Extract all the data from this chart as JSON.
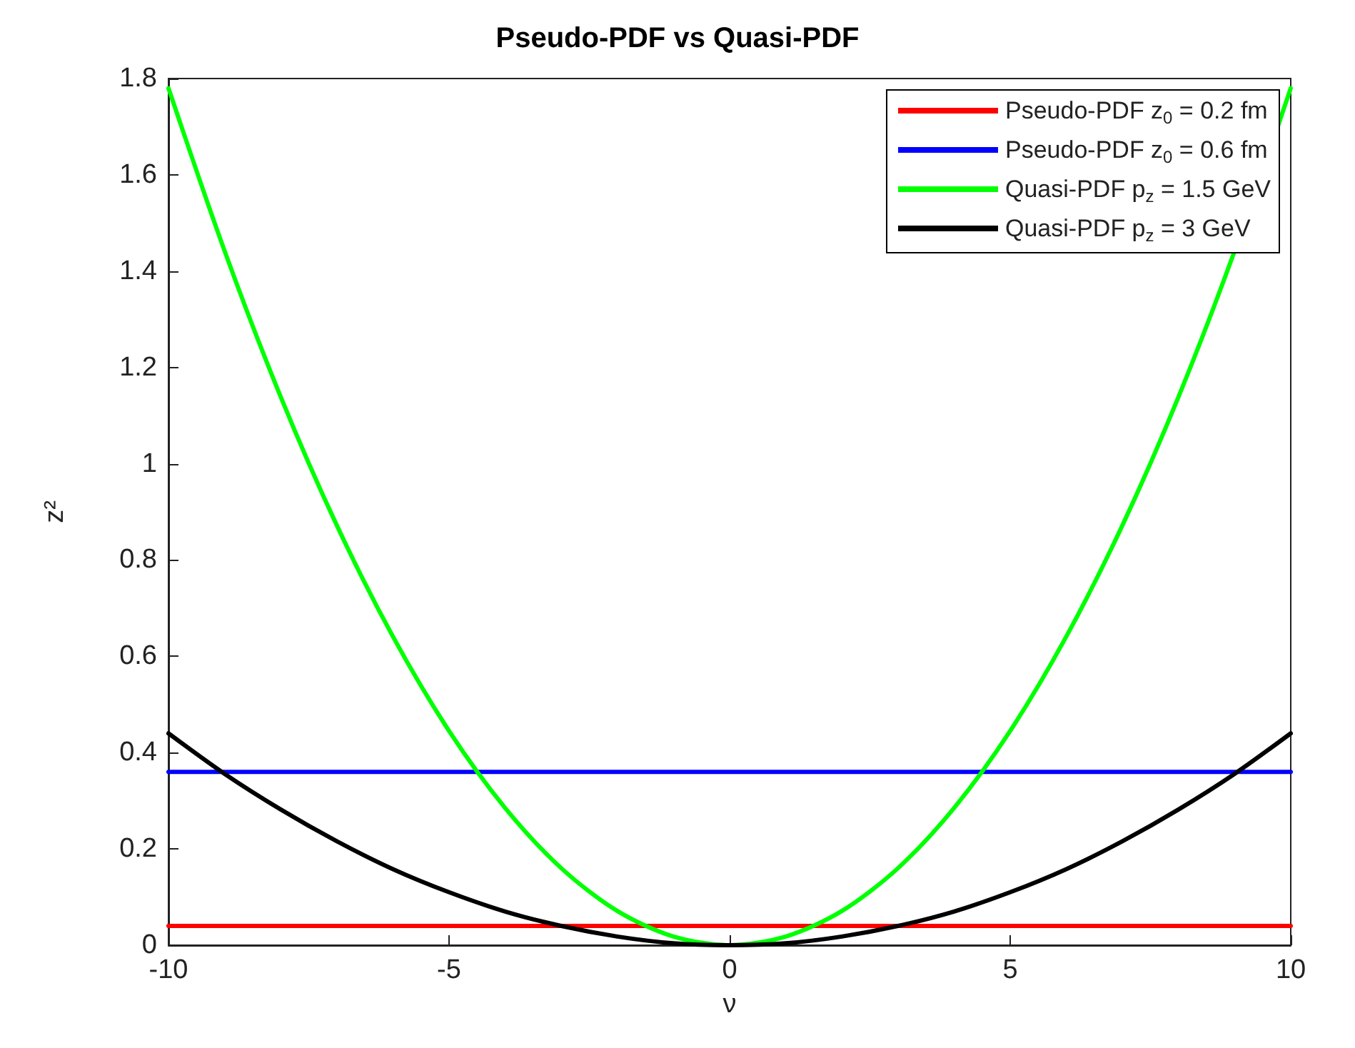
{
  "chart_data": {
    "type": "line",
    "title": "Pseudo-PDF vs Quasi-PDF",
    "xlabel": "ν",
    "ylabel": "z²",
    "x": [
      -10,
      -9,
      -8,
      -7,
      -6,
      -5,
      -4,
      -3,
      -2,
      -1,
      0,
      1,
      2,
      3,
      4,
      5,
      6,
      7,
      8,
      9,
      10
    ],
    "series": [
      {
        "name": "Pseudo-PDF z$_{0}$ = 0.2 fm",
        "color": "#ff0000",
        "values": [
          0.04,
          0.04,
          0.04,
          0.04,
          0.04,
          0.04,
          0.04,
          0.04,
          0.04,
          0.04,
          0.04,
          0.04,
          0.04,
          0.04,
          0.04,
          0.04,
          0.04,
          0.04,
          0.04,
          0.04,
          0.04
        ]
      },
      {
        "name": "Pseudo-PDF z$_{0}$ = 0.6 fm",
        "color": "#0000ff",
        "values": [
          0.36,
          0.36,
          0.36,
          0.36,
          0.36,
          0.36,
          0.36,
          0.36,
          0.36,
          0.36,
          0.36,
          0.36,
          0.36,
          0.36,
          0.36,
          0.36,
          0.36,
          0.36,
          0.36,
          0.36,
          0.36
        ]
      },
      {
        "name": "Quasi-PDF p$_{z}$ = 1.5 GeV",
        "color": "#00ff00",
        "values": [
          1.78,
          1.442,
          1.139,
          0.872,
          0.641,
          0.445,
          0.285,
          0.16,
          0.071,
          0.018,
          0,
          0.018,
          0.071,
          0.16,
          0.285,
          0.445,
          0.641,
          0.872,
          1.139,
          1.442,
          1.78
        ]
      },
      {
        "name": "Quasi-PDF p$_{z}$ = 3 GeV",
        "color": "#000000",
        "values": [
          0.44,
          0.356,
          0.282,
          0.216,
          0.158,
          0.11,
          0.07,
          0.04,
          0.018,
          0.004,
          0,
          0.004,
          0.018,
          0.04,
          0.07,
          0.11,
          0.158,
          0.216,
          0.282,
          0.356,
          0.44
        ]
      }
    ],
    "xlim": [
      -10,
      10
    ],
    "xticks": [
      -10,
      -5,
      0,
      5,
      10
    ],
    "ylim": [
      0,
      1.8
    ],
    "yticks": [
      0,
      0.2,
      0.4,
      0.6,
      0.8,
      1,
      1.2,
      1.4,
      1.6,
      1.8
    ],
    "grid": false,
    "legend": "top right",
    "marker": "none",
    "line_style": "solid"
  }
}
